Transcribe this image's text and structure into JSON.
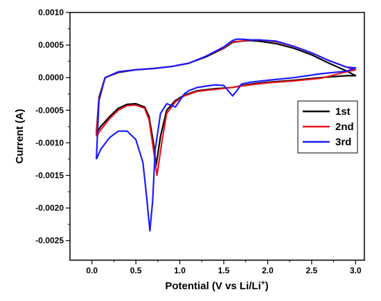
{
  "chart_data": {
    "type": "line",
    "xlabel_main": "Potential (V vs Li/Li",
    "xlabel_sup": "+",
    "xlabel_end": ")",
    "ylabel": "Current (A)",
    "xlim": [
      -0.25,
      3.1
    ],
    "ylim": [
      -0.0028,
      0.001
    ],
    "x_ticks": [
      "0.0",
      "0.5",
      "1.0",
      "1.5",
      "2.0",
      "2.5",
      "3.0"
    ],
    "x_tick_values": [
      0.0,
      0.5,
      1.0,
      1.5,
      2.0,
      2.5,
      3.0
    ],
    "y_ticks": [
      "0.0010",
      "0.0005",
      "0.0000",
      "-0.0005",
      "-0.0010",
      "-0.0015",
      "-0.0020",
      "-0.0025"
    ],
    "y_tick_values": [
      0.001,
      0.0005,
      0.0,
      -0.0005,
      -0.001,
      -0.0015,
      -0.002,
      -0.0025
    ],
    "legend_position": "right",
    "series": [
      {
        "name": "1st",
        "color": "#000000",
        "x": [
          0.05,
          0.1,
          0.2,
          0.3,
          0.4,
          0.5,
          0.6,
          0.65,
          0.7,
          0.73,
          0.78,
          0.85,
          0.95,
          1.05,
          1.2,
          1.4,
          1.6,
          1.8,
          2.0,
          2.3,
          2.6,
          2.9,
          3.0,
          2.9,
          2.7,
          2.5,
          2.3,
          2.1,
          1.9,
          1.8,
          1.7,
          1.6,
          1.5,
          1.3,
          1.1,
          0.9,
          0.7,
          0.5,
          0.3,
          0.15,
          0.08,
          0.05
        ],
        "y": [
          -0.00085,
          -0.00075,
          -0.0006,
          -0.00047,
          -0.00041,
          -0.0004,
          -0.00045,
          -0.0006,
          -0.001,
          -0.00135,
          -0.0009,
          -0.0005,
          -0.00035,
          -0.00027,
          -0.0002,
          -0.00017,
          -0.00015,
          -0.0001,
          -7e-05,
          -4e-05,
          0.0,
          3e-05,
          3e-05,
          0.0001,
          0.00022,
          0.00035,
          0.00045,
          0.00052,
          0.00056,
          0.00057,
          0.00056,
          0.00054,
          0.00045,
          0.00032,
          0.00022,
          0.00017,
          0.00014,
          0.00012,
          8e-05,
          0.0,
          -0.0003,
          -0.00085
        ]
      },
      {
        "name": "2nd",
        "color": "#e8141c",
        "x": [
          0.05,
          0.1,
          0.2,
          0.3,
          0.4,
          0.5,
          0.6,
          0.65,
          0.7,
          0.74,
          0.8,
          0.85,
          0.95,
          1.05,
          1.2,
          1.4,
          1.6,
          1.8,
          2.0,
          2.3,
          2.6,
          2.9,
          3.0,
          2.9,
          2.7,
          2.5,
          2.3,
          2.1,
          1.9,
          1.8,
          1.7,
          1.6,
          1.5,
          1.3,
          1.1,
          0.9,
          0.7,
          0.5,
          0.3,
          0.15,
          0.08,
          0.05
        ],
        "y": [
          -0.0009,
          -0.0008,
          -0.00063,
          -0.0005,
          -0.00043,
          -0.00042,
          -0.00047,
          -0.00065,
          -0.0011,
          -0.0015,
          -0.00095,
          -0.00055,
          -0.00037,
          -0.00028,
          -0.00021,
          -0.00018,
          -0.00015,
          -0.00011,
          -8e-05,
          -5e-05,
          -1e-05,
          9e-05,
          0.00012,
          0.00016,
          0.00026,
          0.00038,
          0.00048,
          0.00055,
          0.00058,
          0.00058,
          0.00056,
          0.00055,
          0.00046,
          0.00033,
          0.00022,
          0.00017,
          0.00014,
          0.00012,
          9e-05,
          0.0,
          -0.00032,
          -0.0009
        ]
      },
      {
        "name": "3rd",
        "color": "#1a1aff",
        "x": [
          0.05,
          0.1,
          0.2,
          0.3,
          0.4,
          0.5,
          0.58,
          0.62,
          0.66,
          0.69,
          0.72,
          0.78,
          0.85,
          0.95,
          1.05,
          1.1,
          1.2,
          1.3,
          1.4,
          1.5,
          1.6,
          1.65,
          1.7,
          1.8,
          2.0,
          2.3,
          2.6,
          2.9,
          3.0,
          2.9,
          2.7,
          2.5,
          2.3,
          2.1,
          1.9,
          1.8,
          1.7,
          1.65,
          1.6,
          1.5,
          1.3,
          1.1,
          0.9,
          0.7,
          0.5,
          0.3,
          0.15,
          0.08,
          0.05
        ],
        "y": [
          -0.00125,
          -0.0011,
          -0.00092,
          -0.00082,
          -0.00082,
          -0.00095,
          -0.0013,
          -0.0018,
          -0.00235,
          -0.0019,
          -0.0011,
          -0.00055,
          -0.0004,
          -0.00045,
          -0.00025,
          -0.0002,
          -0.00015,
          -0.00013,
          -0.00011,
          -0.00012,
          -0.00028,
          -0.0002,
          -0.0001,
          -7e-05,
          -4e-05,
          0.0,
          6e-05,
          0.0001,
          0.00015,
          0.00016,
          0.00026,
          0.00038,
          0.00048,
          0.00056,
          0.00058,
          0.00058,
          0.00059,
          0.00059,
          0.00057,
          0.00047,
          0.00033,
          0.00022,
          0.00017,
          0.00014,
          0.00012,
          9e-05,
          0.0,
          -0.00035,
          -0.00125
        ]
      }
    ]
  }
}
